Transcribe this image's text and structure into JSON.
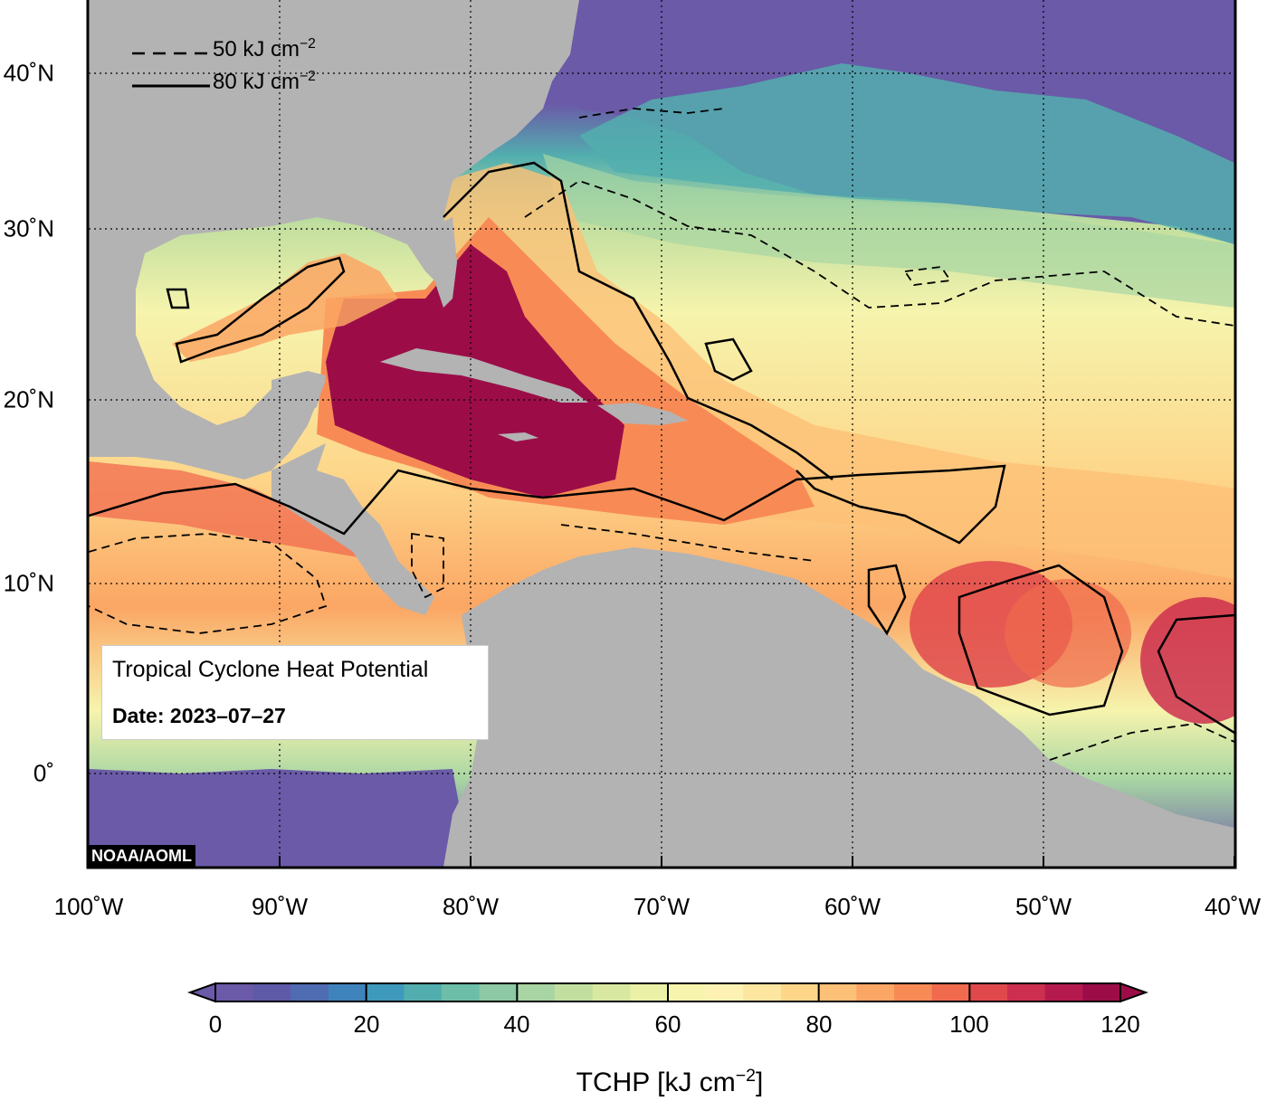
{
  "title": "Tropical Cyclone Heat Potential",
  "date_label": "Date: 2023–07–27",
  "credit": "NOAA/AOML",
  "legend": {
    "dashed_label": "50 kJ cm",
    "solid_label": "80 kJ cm",
    "exponent": "−2"
  },
  "lat_labels": [
    "40˚N",
    "30˚N",
    "20˚N",
    "10˚N",
    "0˚"
  ],
  "lon_labels": [
    "100˚W",
    "90˚W",
    "80˚W",
    "70˚W",
    "60˚W",
    "50˚W",
    "40˚W"
  ],
  "colorbar": {
    "ticks": [
      "0",
      "20",
      "40",
      "60",
      "80",
      "100",
      "120"
    ],
    "title": "TCHP [kJ cm",
    "title_exp": "−2",
    "title_end": "]",
    "min": 0,
    "max": 120,
    "step": 5,
    "colors": [
      "#6a5aa8",
      "#5e5aa8",
      "#4f6cb3",
      "#3f83bd",
      "#3e99bc",
      "#52aeae",
      "#6cbea8",
      "#8cc9a4",
      "#a8d5a3",
      "#c2df9f",
      "#d8e8a1",
      "#eaf0a6",
      "#f6f4ad",
      "#fdf2b3",
      "#fde6a0",
      "#fdd68a",
      "#fcc077",
      "#fba664",
      "#f88b55",
      "#f06a4d",
      "#e0494c",
      "#cc2f4f",
      "#b41a4e",
      "#9c0d48"
    ]
  },
  "map": {
    "lon_range": [
      -100,
      -40
    ],
    "lat_range": [
      -5,
      45
    ],
    "land_color": "#b3b3b3",
    "low_color": "#6a5aa8",
    "high_color": "#9c0d48"
  }
}
